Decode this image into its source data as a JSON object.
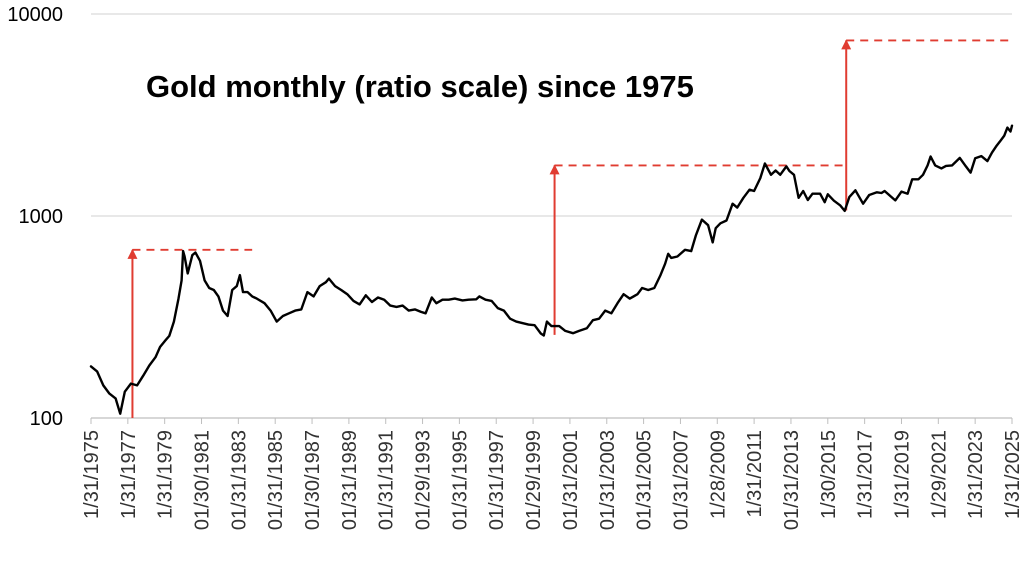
{
  "chart_data": {
    "type": "line",
    "title": "Gold monthly (ratio scale) since 1975",
    "xlabel": "",
    "ylabel": "",
    "y_scale": "log",
    "ylim": [
      100,
      10000
    ],
    "xlim": [
      "1975-01",
      "2025-01"
    ],
    "grid": "horizontal",
    "y_ticks": [
      {
        "value": 100,
        "label": "100"
      },
      {
        "value": 1000,
        "label": "1000"
      },
      {
        "value": 10000,
        "label": "10000"
      }
    ],
    "x_ticks": [
      {
        "date": "1975-01",
        "label": "1/31/1975"
      },
      {
        "date": "1977-01",
        "label": "1/31/1977"
      },
      {
        "date": "1979-01",
        "label": "1/31/1979"
      },
      {
        "date": "1981-01",
        "label": "01/30/1981"
      },
      {
        "date": "1983-01",
        "label": "01/31/1983"
      },
      {
        "date": "1985-01",
        "label": "01/31/1985"
      },
      {
        "date": "1987-01",
        "label": "01/30/1987"
      },
      {
        "date": "1989-01",
        "label": "01/31/1989"
      },
      {
        "date": "1991-01",
        "label": "01/31/1991"
      },
      {
        "date": "1993-01",
        "label": "01/29/1993"
      },
      {
        "date": "1995-01",
        "label": "01/31/1995"
      },
      {
        "date": "1997-01",
        "label": "01/31/1997"
      },
      {
        "date": "1999-01",
        "label": "01/29/1999"
      },
      {
        "date": "2001-01",
        "label": "01/31/2001"
      },
      {
        "date": "2003-01",
        "label": "01/31/2003"
      },
      {
        "date": "2005-01",
        "label": "01/31/2005"
      },
      {
        "date": "2007-01",
        "label": "01/31/2007"
      },
      {
        "date": "2009-01",
        "label": "1/28/2009"
      },
      {
        "date": "2011-01",
        "label": "1/31/2011"
      },
      {
        "date": "2013-01",
        "label": "01/31/2013"
      },
      {
        "date": "2015-01",
        "label": "1/30/2015"
      },
      {
        "date": "2017-01",
        "label": "1/31/2017"
      },
      {
        "date": "2019-01",
        "label": "1/31/2019"
      },
      {
        "date": "2021-01",
        "label": "1/29/2021"
      },
      {
        "date": "2023-01",
        "label": "1/31/2023"
      },
      {
        "date": "2025-01",
        "label": "1/31/2025"
      }
    ],
    "series": [
      {
        "color": "#000000",
        "points": [
          [
            "1975-01",
            180
          ],
          [
            "1975-05",
            170
          ],
          [
            "1975-09",
            145
          ],
          [
            "1976-01",
            132
          ],
          [
            "1976-05",
            125
          ],
          [
            "1976-08",
            105
          ],
          [
            "1976-11",
            135
          ],
          [
            "1977-03",
            148
          ],
          [
            "1977-07",
            145
          ],
          [
            "1977-11",
            162
          ],
          [
            "1978-03",
            182
          ],
          [
            "1978-07",
            200
          ],
          [
            "1978-10",
            225
          ],
          [
            "1979-01",
            240
          ],
          [
            "1979-04",
            255
          ],
          [
            "1979-07",
            300
          ],
          [
            "1979-10",
            390
          ],
          [
            "1979-12",
            480
          ],
          [
            "1980-01",
            670
          ],
          [
            "1980-02",
            630
          ],
          [
            "1980-04",
            520
          ],
          [
            "1980-07",
            640
          ],
          [
            "1980-09",
            660
          ],
          [
            "1980-12",
            600
          ],
          [
            "1981-03",
            480
          ],
          [
            "1981-06",
            440
          ],
          [
            "1981-09",
            430
          ],
          [
            "1981-12",
            400
          ],
          [
            "1982-03",
            340
          ],
          [
            "1982-06",
            320
          ],
          [
            "1982-09",
            430
          ],
          [
            "1982-12",
            450
          ],
          [
            "1983-02",
            510
          ],
          [
            "1983-04",
            420
          ],
          [
            "1983-07",
            420
          ],
          [
            "1983-10",
            400
          ],
          [
            "1984-01",
            390
          ],
          [
            "1984-06",
            370
          ],
          [
            "1984-10",
            340
          ],
          [
            "1985-02",
            300
          ],
          [
            "1985-06",
            320
          ],
          [
            "1985-10",
            330
          ],
          [
            "1986-02",
            340
          ],
          [
            "1986-06",
            345
          ],
          [
            "1986-10",
            420
          ],
          [
            "1987-02",
            400
          ],
          [
            "1987-06",
            450
          ],
          [
            "1987-10",
            470
          ],
          [
            "1987-12",
            490
          ],
          [
            "1988-04",
            450
          ],
          [
            "1988-08",
            430
          ],
          [
            "1988-12",
            410
          ],
          [
            "1989-04",
            380
          ],
          [
            "1989-08",
            365
          ],
          [
            "1989-12",
            405
          ],
          [
            "1990-04",
            375
          ],
          [
            "1990-08",
            395
          ],
          [
            "1990-12",
            385
          ],
          [
            "1991-04",
            360
          ],
          [
            "1991-08",
            355
          ],
          [
            "1991-12",
            360
          ],
          [
            "1992-04",
            340
          ],
          [
            "1992-08",
            345
          ],
          [
            "1992-12",
            335
          ],
          [
            "1993-03",
            330
          ],
          [
            "1993-07",
            395
          ],
          [
            "1993-10",
            370
          ],
          [
            "1994-02",
            385
          ],
          [
            "1994-06",
            385
          ],
          [
            "1994-10",
            390
          ],
          [
            "1995-03",
            382
          ],
          [
            "1995-07",
            385
          ],
          [
            "1995-12",
            387
          ],
          [
            "1996-02",
            400
          ],
          [
            "1996-06",
            385
          ],
          [
            "1996-10",
            380
          ],
          [
            "1997-02",
            350
          ],
          [
            "1997-06",
            340
          ],
          [
            "1997-10",
            310
          ],
          [
            "1998-02",
            300
          ],
          [
            "1998-06",
            295
          ],
          [
            "1998-10",
            290
          ],
          [
            "1999-02",
            288
          ],
          [
            "1999-06",
            262
          ],
          [
            "1999-08",
            256
          ],
          [
            "1999-10",
            300
          ],
          [
            "2000-01",
            285
          ],
          [
            "2000-06",
            285
          ],
          [
            "2000-10",
            270
          ],
          [
            "2001-03",
            263
          ],
          [
            "2001-07",
            270
          ],
          [
            "2001-12",
            278
          ],
          [
            "2002-04",
            305
          ],
          [
            "2002-08",
            310
          ],
          [
            "2002-12",
            340
          ],
          [
            "2003-04",
            330
          ],
          [
            "2003-08",
            370
          ],
          [
            "2003-12",
            410
          ],
          [
            "2004-04",
            390
          ],
          [
            "2004-09",
            410
          ],
          [
            "2004-12",
            440
          ],
          [
            "2005-04",
            430
          ],
          [
            "2005-08",
            440
          ],
          [
            "2005-12",
            510
          ],
          [
            "2006-03",
            580
          ],
          [
            "2006-05",
            650
          ],
          [
            "2006-07",
            620
          ],
          [
            "2006-11",
            630
          ],
          [
            "2007-04",
            680
          ],
          [
            "2007-08",
            670
          ],
          [
            "2007-11",
            800
          ],
          [
            "2008-03",
            960
          ],
          [
            "2008-07",
            900
          ],
          [
            "2008-10",
            740
          ],
          [
            "2008-12",
            870
          ],
          [
            "2009-03",
            920
          ],
          [
            "2009-07",
            950
          ],
          [
            "2009-11",
            1150
          ],
          [
            "2010-02",
            1100
          ],
          [
            "2010-06",
            1230
          ],
          [
            "2010-10",
            1350
          ],
          [
            "2011-01",
            1330
          ],
          [
            "2011-05",
            1540
          ],
          [
            "2011-08",
            1820
          ],
          [
            "2011-12",
            1600
          ],
          [
            "2012-03",
            1680
          ],
          [
            "2012-06",
            1600
          ],
          [
            "2012-10",
            1760
          ],
          [
            "2012-12",
            1670
          ],
          [
            "2013-03",
            1600
          ],
          [
            "2013-06",
            1230
          ],
          [
            "2013-09",
            1330
          ],
          [
            "2013-12",
            1200
          ],
          [
            "2014-03",
            1290
          ],
          [
            "2014-08",
            1290
          ],
          [
            "2014-11",
            1170
          ],
          [
            "2015-01",
            1280
          ],
          [
            "2015-05",
            1190
          ],
          [
            "2015-09",
            1130
          ],
          [
            "2015-12",
            1060
          ],
          [
            "2016-03",
            1240
          ],
          [
            "2016-07",
            1340
          ],
          [
            "2016-12",
            1150
          ],
          [
            "2017-04",
            1270
          ],
          [
            "2017-09",
            1310
          ],
          [
            "2017-12",
            1300
          ],
          [
            "2018-02",
            1330
          ],
          [
            "2018-06",
            1250
          ],
          [
            "2018-09",
            1195
          ],
          [
            "2019-01",
            1320
          ],
          [
            "2019-05",
            1290
          ],
          [
            "2019-08",
            1520
          ],
          [
            "2019-12",
            1520
          ],
          [
            "2020-03",
            1600
          ],
          [
            "2020-06",
            1780
          ],
          [
            "2020-08",
            1970
          ],
          [
            "2020-11",
            1780
          ],
          [
            "2021-03",
            1720
          ],
          [
            "2021-06",
            1770
          ],
          [
            "2021-10",
            1780
          ],
          [
            "2022-03",
            1940
          ],
          [
            "2022-07",
            1760
          ],
          [
            "2022-10",
            1640
          ],
          [
            "2023-01",
            1930
          ],
          [
            "2023-05",
            1980
          ],
          [
            "2023-09",
            1870
          ],
          [
            "2023-12",
            2060
          ],
          [
            "2024-03",
            2230
          ],
          [
            "2024-05",
            2330
          ],
          [
            "2024-08",
            2500
          ],
          [
            "2024-10",
            2740
          ],
          [
            "2024-12",
            2620
          ],
          [
            "2025-01",
            2800
          ]
        ]
      }
    ],
    "annotations": {
      "color": "#e03c31",
      "arrows": [
        {
          "date": "1977-04",
          "from": 100,
          "to": 680
        },
        {
          "date": "2000-03",
          "from": 258,
          "to": 1780
        },
        {
          "date": "2016-01",
          "from": 1065,
          "to": 7400
        }
      ],
      "dashed_lines": [
        {
          "from_date": "1977-04",
          "to_date": "1983-10",
          "value": 680
        },
        {
          "from_date": "2000-03",
          "to_date": "2016-01",
          "value": 1780
        },
        {
          "from_date": "2016-01",
          "to_date": "2025-01",
          "value": 7400
        }
      ]
    }
  }
}
